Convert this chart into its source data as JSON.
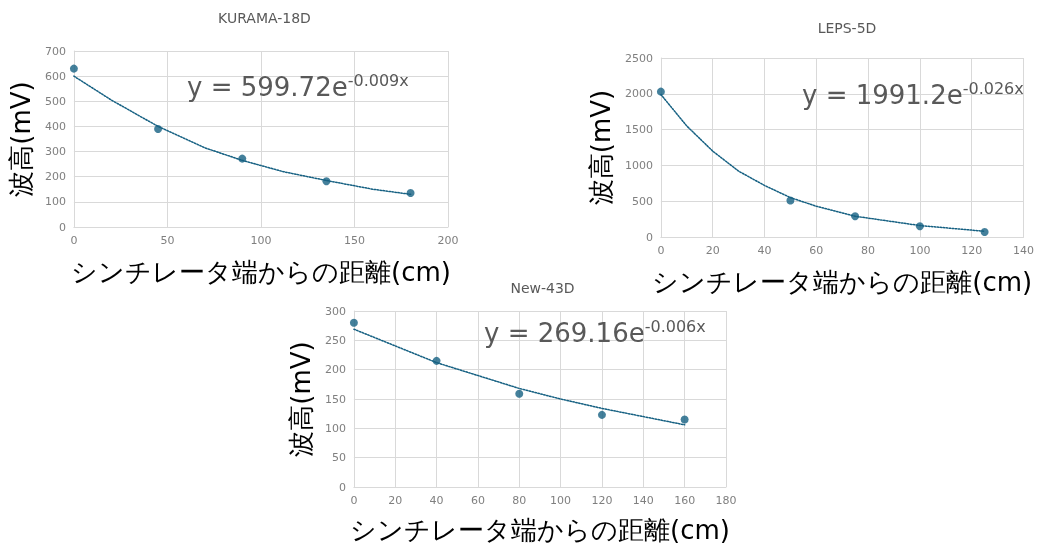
{
  "chart_data": [
    {
      "type": "scatter",
      "title": "KURAMA-18D",
      "xlabel": "シンチレータ端からの距離(cm)",
      "ylabel": "波高(mV)",
      "xlim": [
        0,
        200
      ],
      "xticks": [
        0,
        50,
        100,
        150,
        200
      ],
      "ylim": [
        0,
        700
      ],
      "yticks": [
        0,
        100,
        200,
        300,
        400,
        500,
        600,
        700
      ],
      "grid": true,
      "annotations": [
        "y = 599.72e$^{-0.009x}$"
      ],
      "series": [
        {
          "type": "scatter",
          "marker": "circle",
          "color": "#156082",
          "x": [
            0,
            45,
            90,
            135,
            180
          ],
          "values": [
            630,
            390,
            272,
            182,
            135
          ]
        },
        {
          "type": "line",
          "marker": "none",
          "line_style": "dotted",
          "color": "#156082",
          "x": [
            0,
            20,
            45,
            70,
            90,
            112,
            135,
            160,
            180
          ],
          "values": [
            600,
            505,
            400,
            315,
            265,
            220,
            185,
            150,
            130
          ]
        }
      ]
    },
    {
      "type": "scatter",
      "title": "LEPS-5D",
      "xlabel": "シンチレータ端からの距離(cm)",
      "ylabel": "波高(mV)",
      "xlim": [
        0,
        140
      ],
      "xticks": [
        0,
        20,
        40,
        60,
        80,
        100,
        120,
        140
      ],
      "ylim": [
        0,
        2500
      ],
      "yticks": [
        0,
        500,
        1000,
        1500,
        2000,
        2500
      ],
      "grid": true,
      "annotations": [
        "y = 1991.2e$^{-0.026x}$"
      ],
      "series": [
        {
          "type": "scatter",
          "marker": "circle",
          "color": "#156082",
          "x": [
            0,
            50,
            75,
            100,
            125
          ],
          "values": [
            2030,
            510,
            290,
            150,
            70
          ]
        },
        {
          "type": "line",
          "marker": "none",
          "line_style": "dotted",
          "color": "#156082",
          "x": [
            0,
            10,
            20,
            30,
            40,
            50,
            60,
            75,
            100,
            125
          ],
          "values": [
            1990,
            1550,
            1200,
            920,
            720,
            550,
            430,
            290,
            160,
            80
          ]
        }
      ]
    },
    {
      "type": "scatter",
      "title": "New-43D",
      "xlabel": "シンチレータ端からの距離(cm)",
      "ylabel": "波高(mV)",
      "xlim": [
        0,
        180
      ],
      "xticks": [
        0,
        20,
        40,
        60,
        80,
        100,
        120,
        140,
        160,
        180
      ],
      "ylim": [
        0,
        300
      ],
      "yticks": [
        0,
        50,
        100,
        150,
        200,
        250,
        300
      ],
      "grid": true,
      "annotations": [
        "y = 269.16e$^{-0.006x}$"
      ],
      "series": [
        {
          "type": "scatter",
          "marker": "circle",
          "color": "#156082",
          "x": [
            0,
            40,
            80,
            120,
            160
          ],
          "values": [
            280,
            215,
            159,
            123,
            115
          ]
        },
        {
          "type": "line",
          "marker": "none",
          "line_style": "dotted",
          "color": "#156082",
          "x": [
            0,
            40,
            80,
            100,
            120,
            160
          ],
          "values": [
            269,
            212,
            168,
            150,
            134,
            106
          ]
        }
      ]
    }
  ]
}
